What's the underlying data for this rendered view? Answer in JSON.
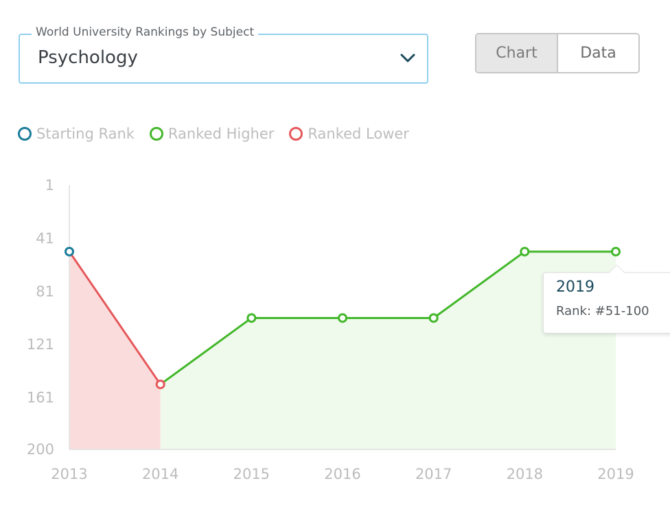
{
  "subject_select": {
    "legend": "World University Rankings by Subject",
    "value": "Psychology",
    "chevron_icon": "chevron-down-icon",
    "border_color": "#8fd0ee"
  },
  "view_toggle": {
    "options": [
      "Chart",
      "Data"
    ],
    "selected": "Chart"
  },
  "legend": {
    "items": [
      {
        "label": "Starting Rank",
        "color": "#1b7c99"
      },
      {
        "label": "Ranked Higher",
        "color": "#42b72a"
      },
      {
        "label": "Ranked Lower",
        "color": "#e5575a"
      }
    ]
  },
  "tooltip": {
    "year": "2019",
    "rank_text": "Rank: #51-100"
  },
  "chart_data": {
    "type": "line",
    "x": [
      2013,
      2014,
      2015,
      2016,
      2017,
      2018,
      2019
    ],
    "x_tick_labels": [
      "2013",
      "2014",
      "2015",
      "2016",
      "2017",
      "2018",
      "2019"
    ],
    "y_values": [
      51,
      151,
      101,
      101,
      101,
      51,
      51
    ],
    "y_tick_values": [
      1,
      41,
      81,
      121,
      161,
      200
    ],
    "y_tick_labels": [
      "1",
      "41",
      "81",
      "121",
      "161",
      "200"
    ],
    "ylim": [
      1,
      200
    ],
    "y_inverted": true,
    "point_status": [
      "start",
      "lower",
      "higher",
      "higher",
      "higher",
      "higher",
      "higher"
    ],
    "colors": {
      "start": "#1b7c99",
      "higher": "#42b72a",
      "lower": "#e5575a",
      "higher_fill": "#eff9ec",
      "lower_fill": "#fbdcdc",
      "axis": "#e5e5e5"
    },
    "grid": false
  }
}
